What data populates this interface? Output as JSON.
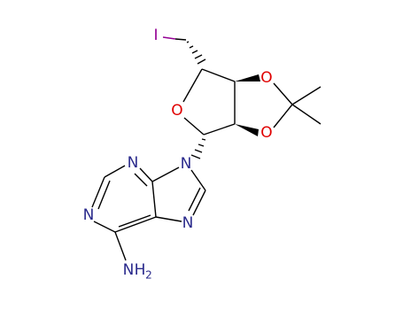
{
  "atoms": {
    "iodine": "I",
    "ring_oxygen": "O",
    "dioxolane_oxygen_top": "O",
    "dioxolane_oxygen_bottom": "O",
    "n9": "N",
    "n3": "N",
    "n1": "N",
    "n7": "N",
    "amine": {
      "n": "N",
      "h": "H",
      "count": "2"
    }
  }
}
